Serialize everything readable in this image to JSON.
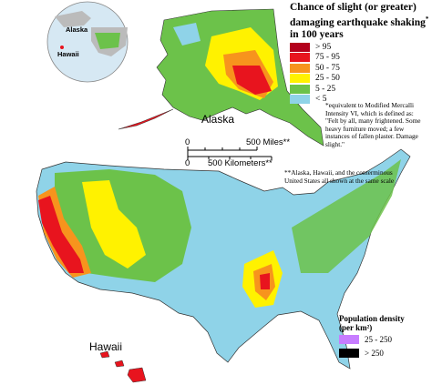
{
  "title": {
    "lines": [
      "Chance of slight (or greater)",
      "damaging earthquake shaking",
      "in 100 years"
    ],
    "mark": "*"
  },
  "legend": {
    "items": [
      {
        "label": "> 95",
        "color": "#b3001b"
      },
      {
        "label": "75 - 95",
        "color": "#e8141e"
      },
      {
        "label": "50 - 75",
        "color": "#f7941d"
      },
      {
        "label": "25 - 50",
        "color": "#fff200"
      },
      {
        "label": "5 - 25",
        "color": "#6cc24a"
      },
      {
        "label": "< 5",
        "color": "#8fd3e8"
      }
    ]
  },
  "footnote": "*equivalent to Modified Mercalli Intensity VI, which is defined as: \"Felt by all, many frightened. Some heavy furniture moved; a few instances of fallen plaster. Damage slight.\"",
  "scale": {
    "miles_start": "0",
    "miles_end": "500 Miles**",
    "km_start": "0",
    "km_end": "500 Kilometers**"
  },
  "scale_note": "**Alaska, Hawaii, and the conterminous United States all shown at the same scale",
  "labels": {
    "alaska": "Alaska",
    "hawaii": "Hawaii"
  },
  "globe": {
    "alaska": "Alaska",
    "hawaii": "Hawaii"
  },
  "population": {
    "title": "Population density",
    "unit": "(per km²)",
    "items": [
      {
        "label": "25 - 250",
        "color": "#c77dff"
      },
      {
        "label": "> 250",
        "color": "#000000"
      }
    ]
  }
}
